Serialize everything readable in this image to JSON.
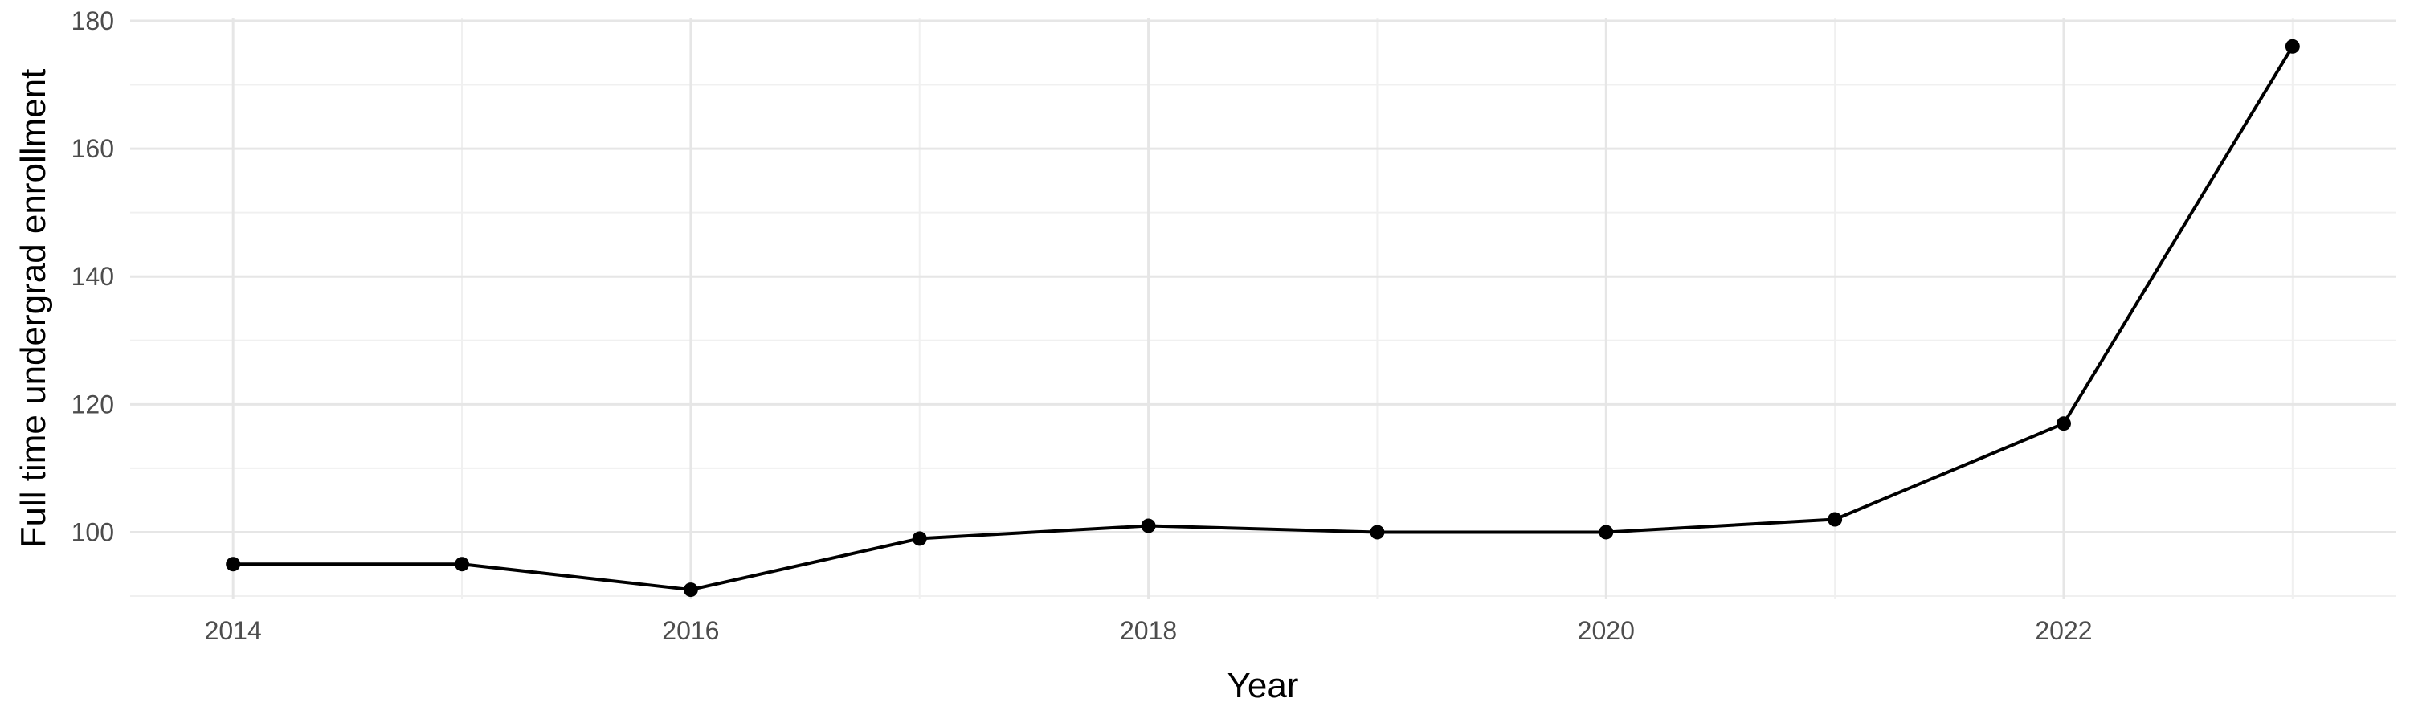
{
  "chart_data": {
    "type": "line",
    "title": "",
    "xlabel": "Year",
    "ylabel": "Full time undergrad enrollment",
    "x": [
      2014,
      2015,
      2016,
      2017,
      2018,
      2019,
      2020,
      2021,
      2022,
      2023
    ],
    "series": [
      {
        "values": [
          95,
          95,
          91,
          99,
          101,
          100,
          100,
          102,
          117,
          176
        ]
      }
    ],
    "xlim": [
      2013.55,
      2023.45
    ],
    "ylim": [
      89.5,
      180.5
    ],
    "x_ticks": [
      2014,
      2016,
      2018,
      2020,
      2022
    ],
    "y_ticks": [
      100,
      120,
      140,
      160,
      180
    ],
    "x_tick_labels": [
      "2014",
      "2016",
      "2018",
      "2020",
      "2022"
    ],
    "y_tick_labels": [
      "100",
      "120",
      "140",
      "160",
      "180"
    ],
    "grid": true,
    "legend": "none",
    "colors": {
      "line": "#000000",
      "point": "#000000",
      "grid": "#e6e6e6"
    }
  }
}
